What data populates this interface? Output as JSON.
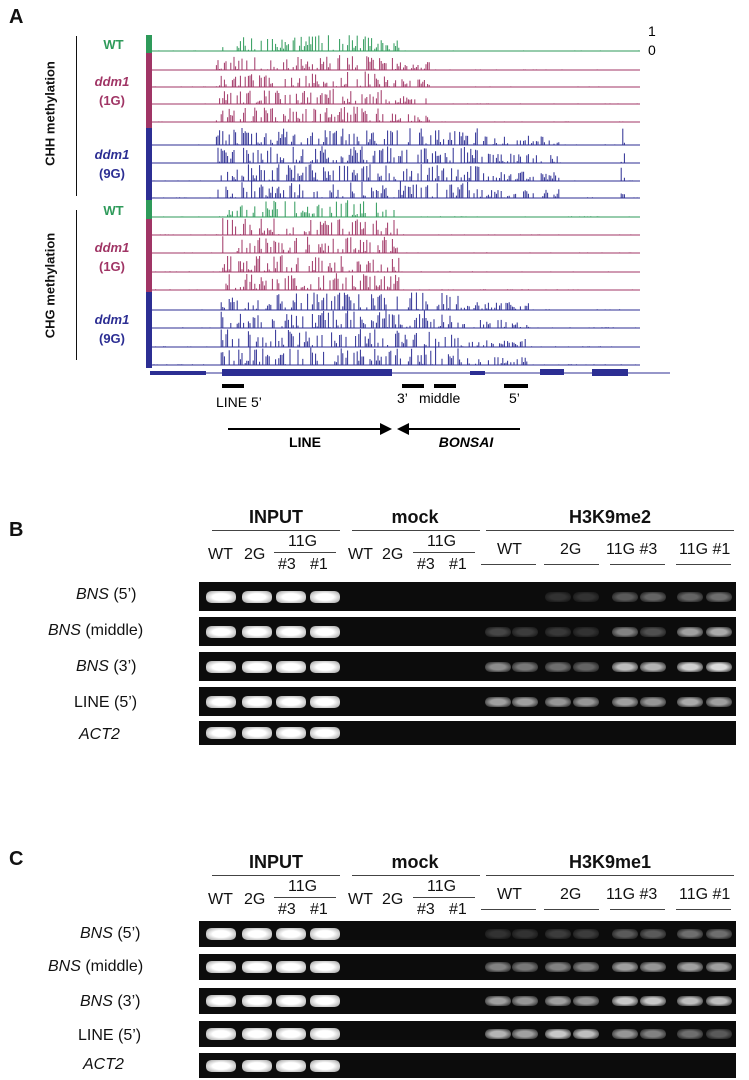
{
  "panel_a": {
    "letter": "A",
    "chh_label": "CHH methylation",
    "chg_label": "CHG methylation",
    "genotypes": {
      "wt": "WT",
      "ddm1": "ddm1",
      "gen1": "(1G)",
      "gen9": "(9G)"
    },
    "scale": {
      "top": "1",
      "bottom": "0"
    },
    "features": {
      "line5": "LINE 5’",
      "three": "3’",
      "middle": "middle",
      "five": "5’"
    },
    "arrows": {
      "line": "LINE",
      "bonsai": "BONSAI"
    },
    "colors": {
      "wt": "#2e9a5a",
      "g1": "#a03565",
      "g9": "#2c2e93"
    }
  },
  "panel_b": {
    "letter": "B",
    "groups": {
      "input": "INPUT",
      "mock": "mock",
      "chip": "H3K9me2"
    },
    "input_lanes": {
      "wt": "WT",
      "g2": "2G",
      "g11": "11G",
      "n3": "#3",
      "n1": "#1"
    },
    "chip_lanes": {
      "wt": "WT",
      "g2": "2G",
      "g11a": "11G #3",
      "g11b": "11G #1"
    },
    "rows": [
      {
        "gene": "BNS",
        "rest": " (5’)"
      },
      {
        "gene": "BNS",
        "rest": " (middle)"
      },
      {
        "gene": "BNS",
        "rest": " (3’)"
      },
      {
        "gene": "",
        "rest": "LINE (5’)"
      },
      {
        "gene": "ACT2",
        "rest": ""
      }
    ]
  },
  "panel_c": {
    "letter": "C",
    "groups": {
      "input": "INPUT",
      "mock": "mock",
      "chip": "H3K9me1"
    },
    "input_lanes": {
      "wt": "WT",
      "g2": "2G",
      "g11": "11G",
      "n3": "#3",
      "n1": "#1"
    },
    "chip_lanes": {
      "wt": "WT",
      "g2": "2G",
      "g11a": "11G #3",
      "g11b": "11G #1"
    },
    "rows": [
      {
        "gene": "BNS",
        "rest": " (5’)"
      },
      {
        "gene": "BNS",
        "rest": " (middle)"
      },
      {
        "gene": "BNS",
        "rest": " (3’)"
      },
      {
        "gene": "",
        "rest": "LINE (5’)"
      },
      {
        "gene": "ACT2",
        "rest": ""
      }
    ]
  }
}
